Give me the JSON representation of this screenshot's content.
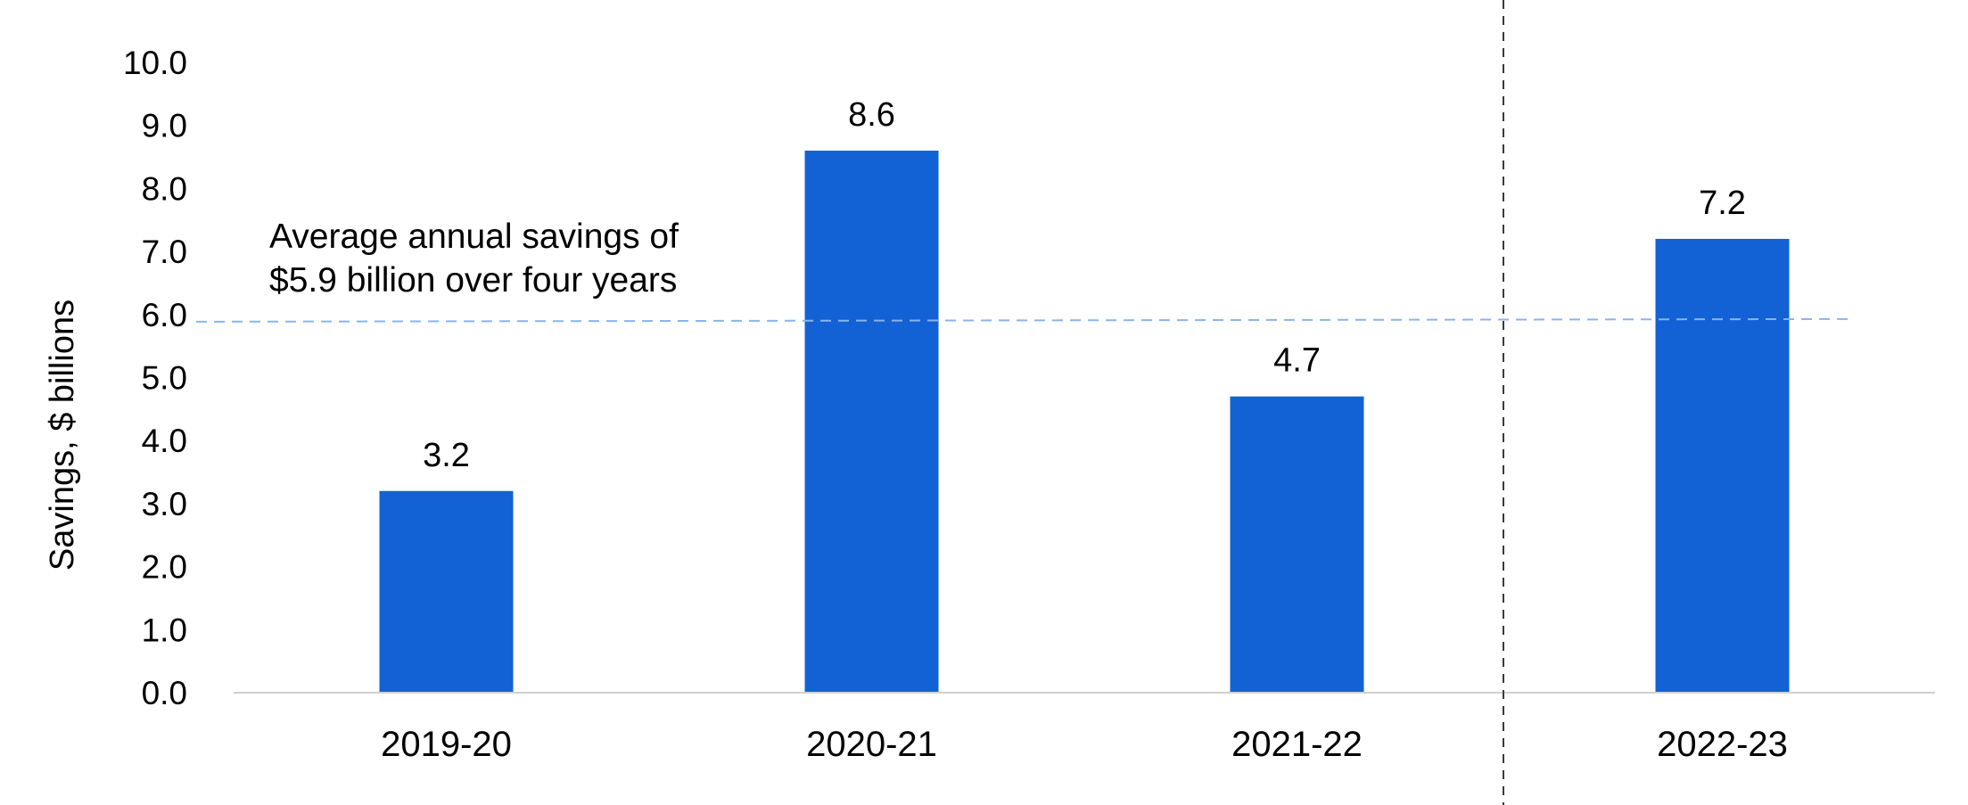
{
  "chart_data": {
    "type": "bar",
    "categories": [
      "2019-20",
      "2020-21",
      "2021-22",
      "2022-23"
    ],
    "series": [
      {
        "values": [
          3.2,
          8.6,
          4.7,
          7.2
        ]
      }
    ],
    "data_labels": [
      "3.2",
      "8.6",
      "4.7",
      "7.2"
    ],
    "title": "",
    "xlabel": "",
    "ylabel": "Savings, $ billions",
    "ylim": [
      0,
      10
    ],
    "yticks": [
      "0.0",
      "1.0",
      "2.0",
      "3.0",
      "4.0",
      "5.0",
      "6.0",
      "7.0",
      "8.0",
      "9.0",
      "10.0"
    ],
    "grid": false,
    "legend": "none",
    "average_line": {
      "value": 5.9,
      "style": "dashed"
    },
    "annotation": {
      "line1": "Average annual savings of",
      "line2": "$5.9 billion over four years"
    },
    "divider": {
      "between": [
        "2021-22",
        "2022-23"
      ],
      "style": "dashed"
    },
    "colors": {
      "bar": "#1262D6",
      "average_line": "#8AB4F0",
      "divider": "#3A3A3A",
      "axis": "#D0D0D0"
    }
  }
}
